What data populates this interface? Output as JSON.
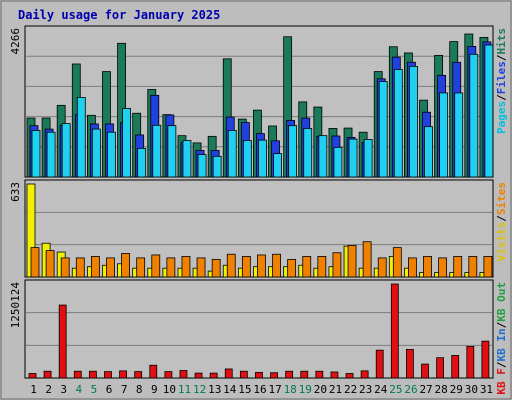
{
  "title": "Daily usage for January 2025",
  "chart_data": [
    {
      "type": "bar",
      "panel": "traffic",
      "y_tick_label": "4266",
      "ymax": 4266,
      "categories": [
        "1",
        "2",
        "3",
        "4",
        "5",
        "6",
        "7",
        "8",
        "9",
        "10",
        "11",
        "12",
        "13",
        "14",
        "15",
        "16",
        "17",
        "18",
        "19",
        "20",
        "21",
        "22",
        "23",
        "24",
        "25",
        "26",
        "27",
        "28",
        "29",
        "30",
        "31"
      ],
      "weekend_days": [
        "4",
        "5",
        "11",
        "12",
        "18",
        "19",
        "25",
        "26"
      ],
      "legend": [
        "Pages",
        "/",
        "Files",
        "/",
        "Hits"
      ],
      "series": [
        {
          "name": "Hits",
          "color": "#1a7a5a",
          "values": [
            1710,
            1710,
            2080,
            3280,
            1790,
            3060,
            3880,
            1850,
            2540,
            1810,
            1200,
            990,
            1180,
            3430,
            1680,
            1940,
            1480,
            4070,
            2180,
            2030,
            1410,
            1420,
            1300,
            3060,
            3780,
            3600,
            2230,
            3530,
            3930,
            4150,
            4050
          ]
        },
        {
          "name": "Files",
          "color": "#2040e0",
          "values": [
            1490,
            1390,
            1500,
            1810,
            1540,
            1540,
            1580,
            1220,
            2370,
            1800,
            1000,
            770,
            770,
            1740,
            1580,
            1260,
            1050,
            1640,
            1710,
            1180,
            1190,
            1150,
            1000,
            2850,
            3480,
            3330,
            1880,
            2950,
            3330,
            3790,
            3920
          ]
        },
        {
          "name": "Pages",
          "color": "#20d0f0",
          "values": [
            1350,
            1300,
            1550,
            2310,
            1390,
            1300,
            1990,
            830,
            1500,
            1490,
            1060,
            650,
            600,
            1350,
            1060,
            1070,
            680,
            1490,
            1410,
            1200,
            860,
            1100,
            1090,
            2770,
            3120,
            3210,
            1460,
            2440,
            2440,
            3560,
            3830
          ]
        }
      ]
    },
    {
      "type": "bar",
      "panel": "visits",
      "y_tick_label": "633",
      "ymax": 633,
      "legend": [
        "Visits",
        "/",
        "Sites"
      ],
      "series": [
        {
          "name": "Visits",
          "color": "#f0f000",
          "values": [
            633,
            230,
            170,
            60,
            70,
            80,
            90,
            60,
            60,
            60,
            60,
            60,
            40,
            80,
            60,
            70,
            70,
            70,
            80,
            60,
            70,
            210,
            60,
            60,
            140,
            60,
            30,
            30,
            30,
            30,
            30
          ]
        },
        {
          "name": "Sites",
          "color": "#f08000",
          "values": [
            200,
            180,
            130,
            130,
            140,
            130,
            160,
            130,
            150,
            130,
            140,
            130,
            120,
            155,
            140,
            150,
            155,
            120,
            140,
            140,
            165,
            215,
            240,
            130,
            200,
            130,
            140,
            130,
            140,
            140,
            140
          ]
        }
      ]
    },
    {
      "type": "bar",
      "panel": "kbytes",
      "y_tick_label": "1250124",
      "ymax": 1250124,
      "legend": [
        "KB F",
        "/",
        "KB In",
        "/",
        "KB Out"
      ],
      "series": [
        {
          "name": "KB F",
          "color": "#e01010",
          "values": [
            60000,
            90000,
            970000,
            90000,
            90000,
            85000,
            95000,
            85000,
            170000,
            85000,
            100000,
            65000,
            65000,
            120000,
            90000,
            75000,
            70000,
            90000,
            90000,
            90000,
            80000,
            60000,
            95000,
            370000,
            1250124,
            380000,
            185000,
            270000,
            300000,
            420000,
            490000
          ]
        }
      ]
    }
  ]
}
